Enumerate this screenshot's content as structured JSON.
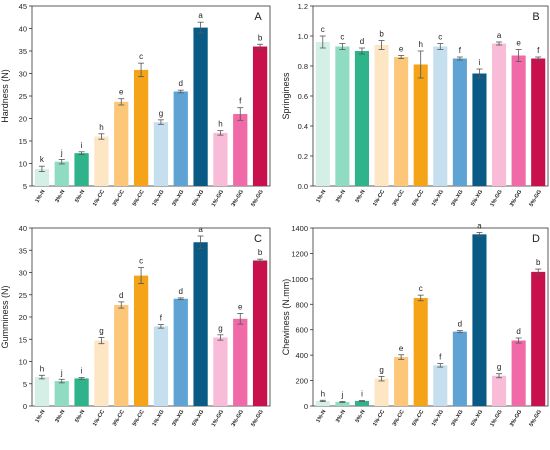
{
  "colors": [
    "#d4efe6",
    "#8fdcc2",
    "#2fb38a",
    "#fde6c3",
    "#fdc77a",
    "#f5a318",
    "#c6dfee",
    "#5ea3d4",
    "#0a5a86",
    "#f9bcd8",
    "#f06aa8",
    "#c7104c"
  ],
  "chart_data": [
    {
      "type": "bar",
      "panel_label": "A",
      "ylabel": "Hardness (N)",
      "ylim": [
        5,
        45
      ],
      "yticks": [
        5,
        10,
        15,
        20,
        25,
        30,
        35,
        40,
        45
      ],
      "categories": [
        "1%-N",
        "3%-N",
        "5%-N",
        "1%-CC",
        "3%-CC",
        "5%-CC",
        "1%-XG",
        "3%-XG",
        "5%-XG",
        "1%-GG",
        "3%-GG",
        "5%-GG"
      ],
      "values": [
        8.8,
        10.4,
        12.3,
        16.0,
        23.7,
        30.8,
        19.2,
        26.0,
        40.2,
        16.8,
        21.0,
        36.0
      ],
      "errors": [
        0.6,
        0.5,
        0.3,
        0.6,
        0.7,
        1.5,
        0.5,
        0.3,
        1.2,
        0.5,
        1.4,
        0.5
      ],
      "letters": [
        "k",
        "j",
        "i",
        "h",
        "e",
        "c",
        "g",
        "d",
        "a",
        "h",
        "f",
        "b"
      ]
    },
    {
      "type": "bar",
      "panel_label": "B",
      "ylabel": "Springiness",
      "ylim": [
        0,
        1.2
      ],
      "yticks": [
        "0.0",
        "0.2",
        "0.4",
        "0.6",
        "0.8",
        "1.0",
        "1.2"
      ],
      "categories": [
        "1%-N",
        "3%-N",
        "5%-N",
        "1%-CC",
        "3%-CC",
        "5%-CC",
        "1%-XG",
        "3%-XG",
        "5%-XG",
        "1%-GG",
        "3%-GG",
        "5%-GG"
      ],
      "values": [
        0.96,
        0.93,
        0.9,
        0.94,
        0.86,
        0.81,
        0.93,
        0.85,
        0.75,
        0.95,
        0.87,
        0.85
      ],
      "errors": [
        0.04,
        0.02,
        0.02,
        0.03,
        0.01,
        0.09,
        0.02,
        0.01,
        0.03,
        0.01,
        0.04,
        0.01
      ],
      "letters": [
        "c",
        "c",
        "d",
        "b",
        "e",
        "h",
        "c",
        "f",
        "i",
        "a",
        "e",
        "f"
      ]
    },
    {
      "type": "bar",
      "panel_label": "C",
      "ylabel": "Gumminess (N)",
      "ylim": [
        0,
        40
      ],
      "yticks": [
        0,
        5,
        10,
        15,
        20,
        25,
        30,
        35,
        40
      ],
      "categories": [
        "1%-N",
        "3%-N",
        "5%-N",
        "1%-CC",
        "3%-CC",
        "5%-CC",
        "1%-XG",
        "3%-XG",
        "5%-XG",
        "1%-GG",
        "3%-GG",
        "5%-GG"
      ],
      "values": [
        6.5,
        5.6,
        6.2,
        14.7,
        22.7,
        29.3,
        17.9,
        24.1,
        36.8,
        15.4,
        19.6,
        32.7
      ],
      "errors": [
        0.4,
        0.4,
        0.2,
        0.7,
        0.7,
        1.8,
        0.4,
        0.2,
        1.4,
        0.6,
        1.2,
        0.3
      ],
      "letters": [
        "h",
        "j",
        "i",
        "g",
        "d",
        "c",
        "f",
        "d",
        "a",
        "g",
        "e",
        "b"
      ]
    },
    {
      "type": "bar",
      "panel_label": "D",
      "ylabel": "Chewiness (N.mm)",
      "ylim": [
        0,
        1400
      ],
      "yticks": [
        0,
        200,
        400,
        600,
        800,
        1000,
        1200,
        1400
      ],
      "categories": [
        "1%-N",
        "3%-N",
        "5%-N",
        "1%-CC",
        "3%-CC",
        "5%-CC",
        "1%-XG",
        "3%-XG",
        "5%-XG",
        "1%-GG",
        "3%-GG",
        "5%-GG"
      ],
      "values": [
        40,
        32,
        40,
        215,
        385,
        850,
        320,
        585,
        1350,
        238,
        515,
        1055
      ],
      "errors": [
        5,
        4,
        3,
        18,
        18,
        22,
        14,
        8,
        15,
        16,
        20,
        22
      ],
      "letters": [
        "h",
        "j",
        "i",
        "g",
        "e",
        "c",
        "f",
        "d",
        "a",
        "g",
        "d",
        "b"
      ]
    }
  ]
}
